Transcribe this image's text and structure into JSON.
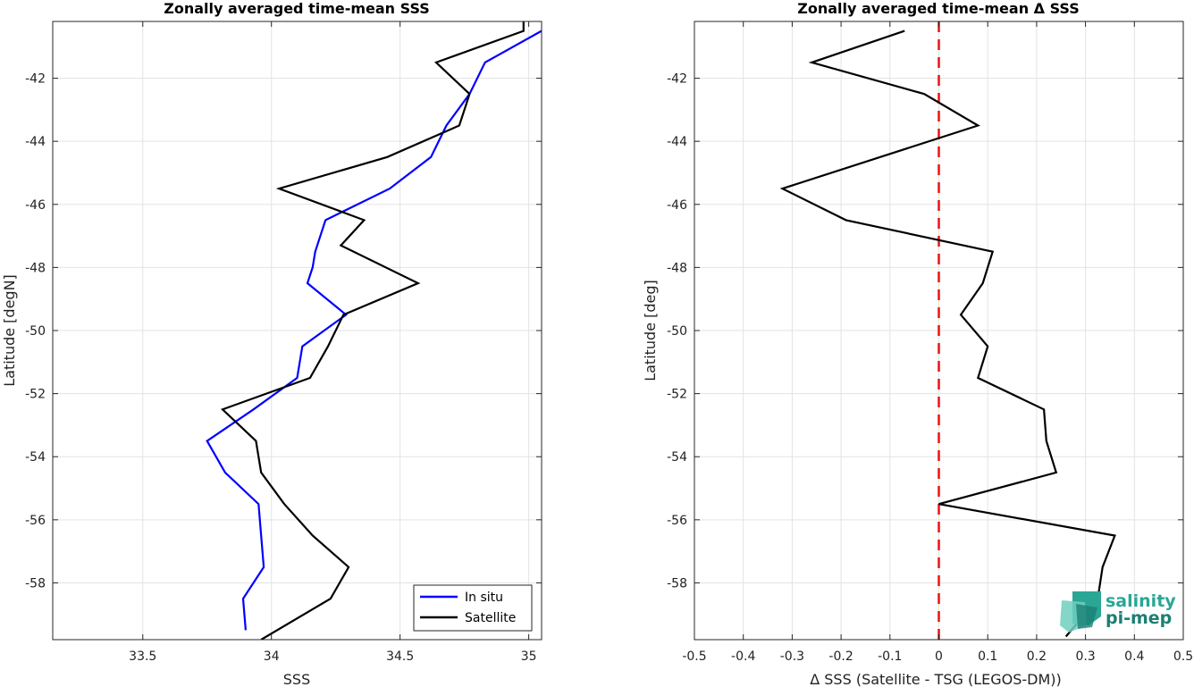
{
  "chart_data": [
    {
      "type": "line",
      "title": "Zonally averaged time-mean SSS",
      "xlabel": "SSS",
      "ylabel": "Latitude [degN]",
      "xlim": [
        33.15,
        35.05
      ],
      "ylim": [
        -59.8,
        -40.2
      ],
      "xticks": [
        33.5,
        34,
        34.5,
        35
      ],
      "xtick_labels": [
        "33.5",
        "34",
        "34.5",
        "35"
      ],
      "yticks": [
        -58,
        -56,
        -54,
        -52,
        -50,
        -48,
        -46,
        -44,
        -42
      ],
      "ytick_labels": [
        "-58",
        "-56",
        "-54",
        "-52",
        "-50",
        "-48",
        "-46",
        "-44",
        "-42"
      ],
      "grid": true,
      "legend_position": "bottom-right",
      "series": [
        {
          "name": "In situ",
          "color": "#0000ff",
          "x": [
            35.05,
            34.83,
            34.77,
            34.68,
            34.62,
            34.46,
            34.21,
            34.17,
            34.16,
            34.14,
            34.29,
            34.12,
            34.1,
            33.93,
            33.75,
            33.82,
            33.95,
            33.96,
            33.97,
            33.89,
            33.9
          ],
          "y": [
            -40.5,
            -41.5,
            -42.5,
            -43.5,
            -44.5,
            -45.5,
            -46.5,
            -47.5,
            -48,
            -48.5,
            -49.5,
            -50.5,
            -51.5,
            -52.5,
            -53.5,
            -54.5,
            -55.5,
            -56.5,
            -57.5,
            -58.5,
            -59.5
          ]
        },
        {
          "name": "Satellite",
          "color": "#000000",
          "x": [
            34.98,
            34.98,
            34.64,
            34.77,
            34.73,
            34.45,
            34.03,
            34.36,
            34.27,
            34.57,
            34.28,
            34.22,
            34.15,
            33.81,
            33.94,
            33.96,
            34.05,
            34.16,
            34.3,
            34.23,
            33.96
          ],
          "y": [
            -40.0,
            -40.5,
            -41.5,
            -42.5,
            -43.5,
            -44.5,
            -45.5,
            -46.5,
            -47.3,
            -48.5,
            -49.5,
            -50.5,
            -51.5,
            -52.5,
            -53.5,
            -54.5,
            -55.5,
            -56.5,
            -57.5,
            -58.5,
            -59.8
          ]
        }
      ]
    },
    {
      "type": "line",
      "title": "Zonally averaged time-mean Δ SSS",
      "xlabel": "Δ SSS (Satellite - TSG (LEGOS-DM))",
      "ylabel": "Latitude [deg]",
      "xlim": [
        -0.5,
        0.5
      ],
      "ylim": [
        -59.8,
        -40.2
      ],
      "xticks": [
        -0.5,
        -0.4,
        -0.3,
        -0.2,
        -0.1,
        0,
        0.1,
        0.2,
        0.3,
        0.4,
        0.5
      ],
      "xtick_labels": [
        "-0.5",
        "-0.4",
        "-0.3",
        "-0.2",
        "-0.1",
        "0",
        "0.1",
        "0.2",
        "0.3",
        "0.4",
        "0.5"
      ],
      "yticks": [
        -58,
        -56,
        -54,
        -52,
        -50,
        -48,
        -46,
        -44,
        -42
      ],
      "ytick_labels": [
        "-58",
        "-56",
        "-54",
        "-52",
        "-50",
        "-48",
        "-46",
        "-44",
        "-42"
      ],
      "grid": true,
      "reference_line": {
        "x": 0,
        "color": "#ee1111",
        "style": "dashed"
      },
      "series": [
        {
          "color": "#000000",
          "x": [
            -0.07,
            -0.26,
            -0.03,
            0.08,
            -0.32,
            -0.19,
            0.11,
            0.09,
            0.045,
            0.1,
            0.08,
            0.215,
            0.22,
            0.24,
            0.0,
            0.36,
            0.335,
            0.325,
            0.26
          ],
          "y": [
            -40.5,
            -41.5,
            -42.5,
            -43.5,
            -45.5,
            -46.5,
            -47.5,
            -48.5,
            -49.5,
            -50.5,
            -51.5,
            -52.5,
            -53.5,
            -54.5,
            -55.5,
            -56.5,
            -57.5,
            -58.5,
            -59.7
          ]
        }
      ]
    }
  ],
  "logo": {
    "line1": "salinity",
    "line2": "pi-mep",
    "colors": [
      "#2aa695",
      "#1c7f74",
      "#6fcfc0"
    ]
  }
}
